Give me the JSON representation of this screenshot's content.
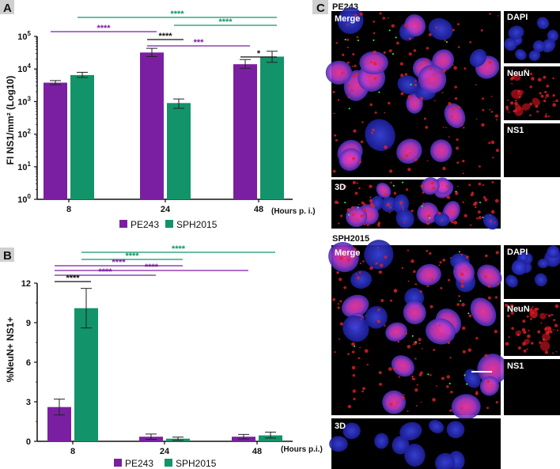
{
  "colors": {
    "pe243": "#7b1fa2",
    "sph2015": "#13936a",
    "black": "#111111",
    "panel_bg": "#000000"
  },
  "panels": {
    "A": {
      "label": "A"
    },
    "B": {
      "label": "B"
    },
    "C": {
      "label": "C"
    }
  },
  "chart_data": [
    {
      "id": "A",
      "type": "bar",
      "scale": "log",
      "ylabel": "FI NS1/mm² (Log10)",
      "xlabel": "(Hours p. i.)",
      "ylim": [
        1,
        100000
      ],
      "yticks": [
        {
          "value": 1,
          "base": "10",
          "exp": "0"
        },
        {
          "value": 10,
          "base": "10",
          "exp": "1"
        },
        {
          "value": 100,
          "base": "10",
          "exp": "2"
        },
        {
          "value": 1000,
          "base": "10",
          "exp": "3"
        },
        {
          "value": 10000,
          "base": "10",
          "exp": "4"
        },
        {
          "value": 100000,
          "base": "10",
          "exp": "5"
        }
      ],
      "categories": [
        "8",
        "24",
        "48"
      ],
      "series": [
        {
          "name": "PE243",
          "values": [
            3800,
            32000,
            14000
          ],
          "err": [
            [
              3300,
              4400
            ],
            [
              24000,
              43000
            ],
            [
              10500,
              19500
            ]
          ]
        },
        {
          "name": "SPH2015",
          "values": [
            6500,
            900,
            24000
          ],
          "err": [
            [
              5500,
              7900
            ],
            [
              620,
              1200
            ],
            [
              16000,
              35000
            ]
          ]
        }
      ],
      "significance": [
        {
          "label": "****",
          "color": "green",
          "from": [
            0,
            1
          ],
          "to": [
            2,
            1
          ]
        },
        {
          "label": "****",
          "color": "green",
          "from": [
            1,
            1
          ],
          "to": [
            2,
            1
          ]
        },
        {
          "label": "****",
          "color": "purple",
          "from": [
            0,
            0
          ],
          "to": [
            1,
            0
          ]
        },
        {
          "label": "****",
          "color": "black",
          "from": [
            1,
            0
          ],
          "to": [
            1,
            1
          ]
        },
        {
          "label": "***",
          "color": "purple",
          "from": [
            1,
            0
          ],
          "to": [
            2,
            0
          ]
        },
        {
          "label": "*",
          "color": "black",
          "from": [
            2,
            0
          ],
          "to": [
            2,
            1
          ]
        }
      ]
    },
    {
      "id": "B",
      "type": "bar",
      "scale": "linear",
      "ylabel": "%NeuN+ NS1+",
      "xlabel": "(Hours p.i.)",
      "ylim": [
        0,
        12
      ],
      "yticks": [
        {
          "value": 0,
          "label": "0"
        },
        {
          "value": 3,
          "label": "3"
        },
        {
          "value": 6,
          "label": "6"
        },
        {
          "value": 9,
          "label": "9"
        },
        {
          "value": 12,
          "label": "12"
        }
      ],
      "categories": [
        "8",
        "24",
        "48"
      ],
      "series": [
        {
          "name": "PE243",
          "values": [
            2.6,
            0.35,
            0.35
          ],
          "err": [
            [
              2.0,
              3.2
            ],
            [
              0.15,
              0.55
            ],
            [
              0.18,
              0.52
            ]
          ]
        },
        {
          "name": "SPH2015",
          "values": [
            10.1,
            0.2,
            0.45
          ],
          "err": [
            [
              8.6,
              11.6
            ],
            [
              0.08,
              0.32
            ],
            [
              0.25,
              0.7
            ]
          ]
        }
      ],
      "significance": [
        {
          "label": "****",
          "color": "green",
          "from": [
            0,
            1
          ],
          "to": [
            2,
            1
          ]
        },
        {
          "label": "****",
          "color": "green",
          "from": [
            0,
            1
          ],
          "to": [
            1,
            1
          ]
        },
        {
          "label": "****",
          "color": "purple",
          "from": [
            0,
            0
          ],
          "to": [
            1,
            1
          ]
        },
        {
          "label": "****",
          "color": "purple",
          "from": [
            0,
            0
          ],
          "to": [
            2,
            0
          ]
        },
        {
          "label": "****",
          "color": "purple",
          "from": [
            0,
            0
          ],
          "to": [
            1,
            0
          ]
        },
        {
          "label": "****",
          "color": "black",
          "from": [
            0,
            0
          ],
          "to": [
            0,
            1
          ]
        }
      ]
    }
  ],
  "micrographs": {
    "pe243": {
      "title": "PE243",
      "merge": "Merge",
      "threed": "3D",
      "channels": [
        "DAPI",
        "NeuN",
        "NS1"
      ]
    },
    "sph2015": {
      "title": "SPH2015",
      "merge": "Merge",
      "threed": "3D",
      "channels": [
        "DAPI",
        "NeuN",
        "NS1"
      ]
    }
  }
}
